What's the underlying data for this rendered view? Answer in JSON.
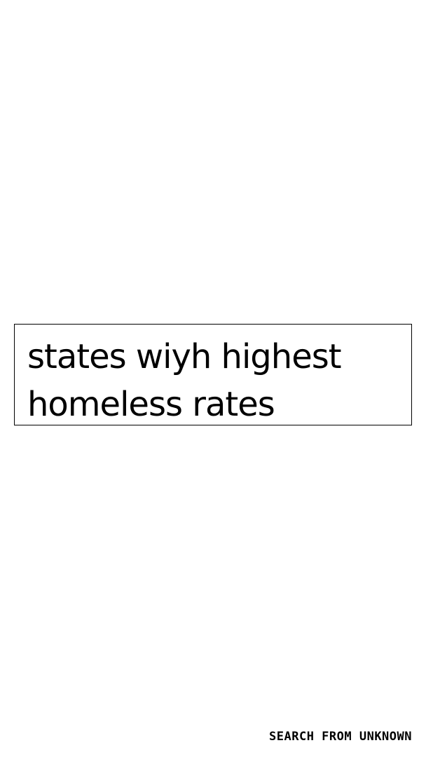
{
  "search": {
    "query": "states wiyh highest homeless rates"
  },
  "footer": {
    "label": "SEARCH FROM UNKNOWN"
  },
  "colors": {
    "background": "#ffffff",
    "text": "#000000",
    "border": "#000000"
  }
}
